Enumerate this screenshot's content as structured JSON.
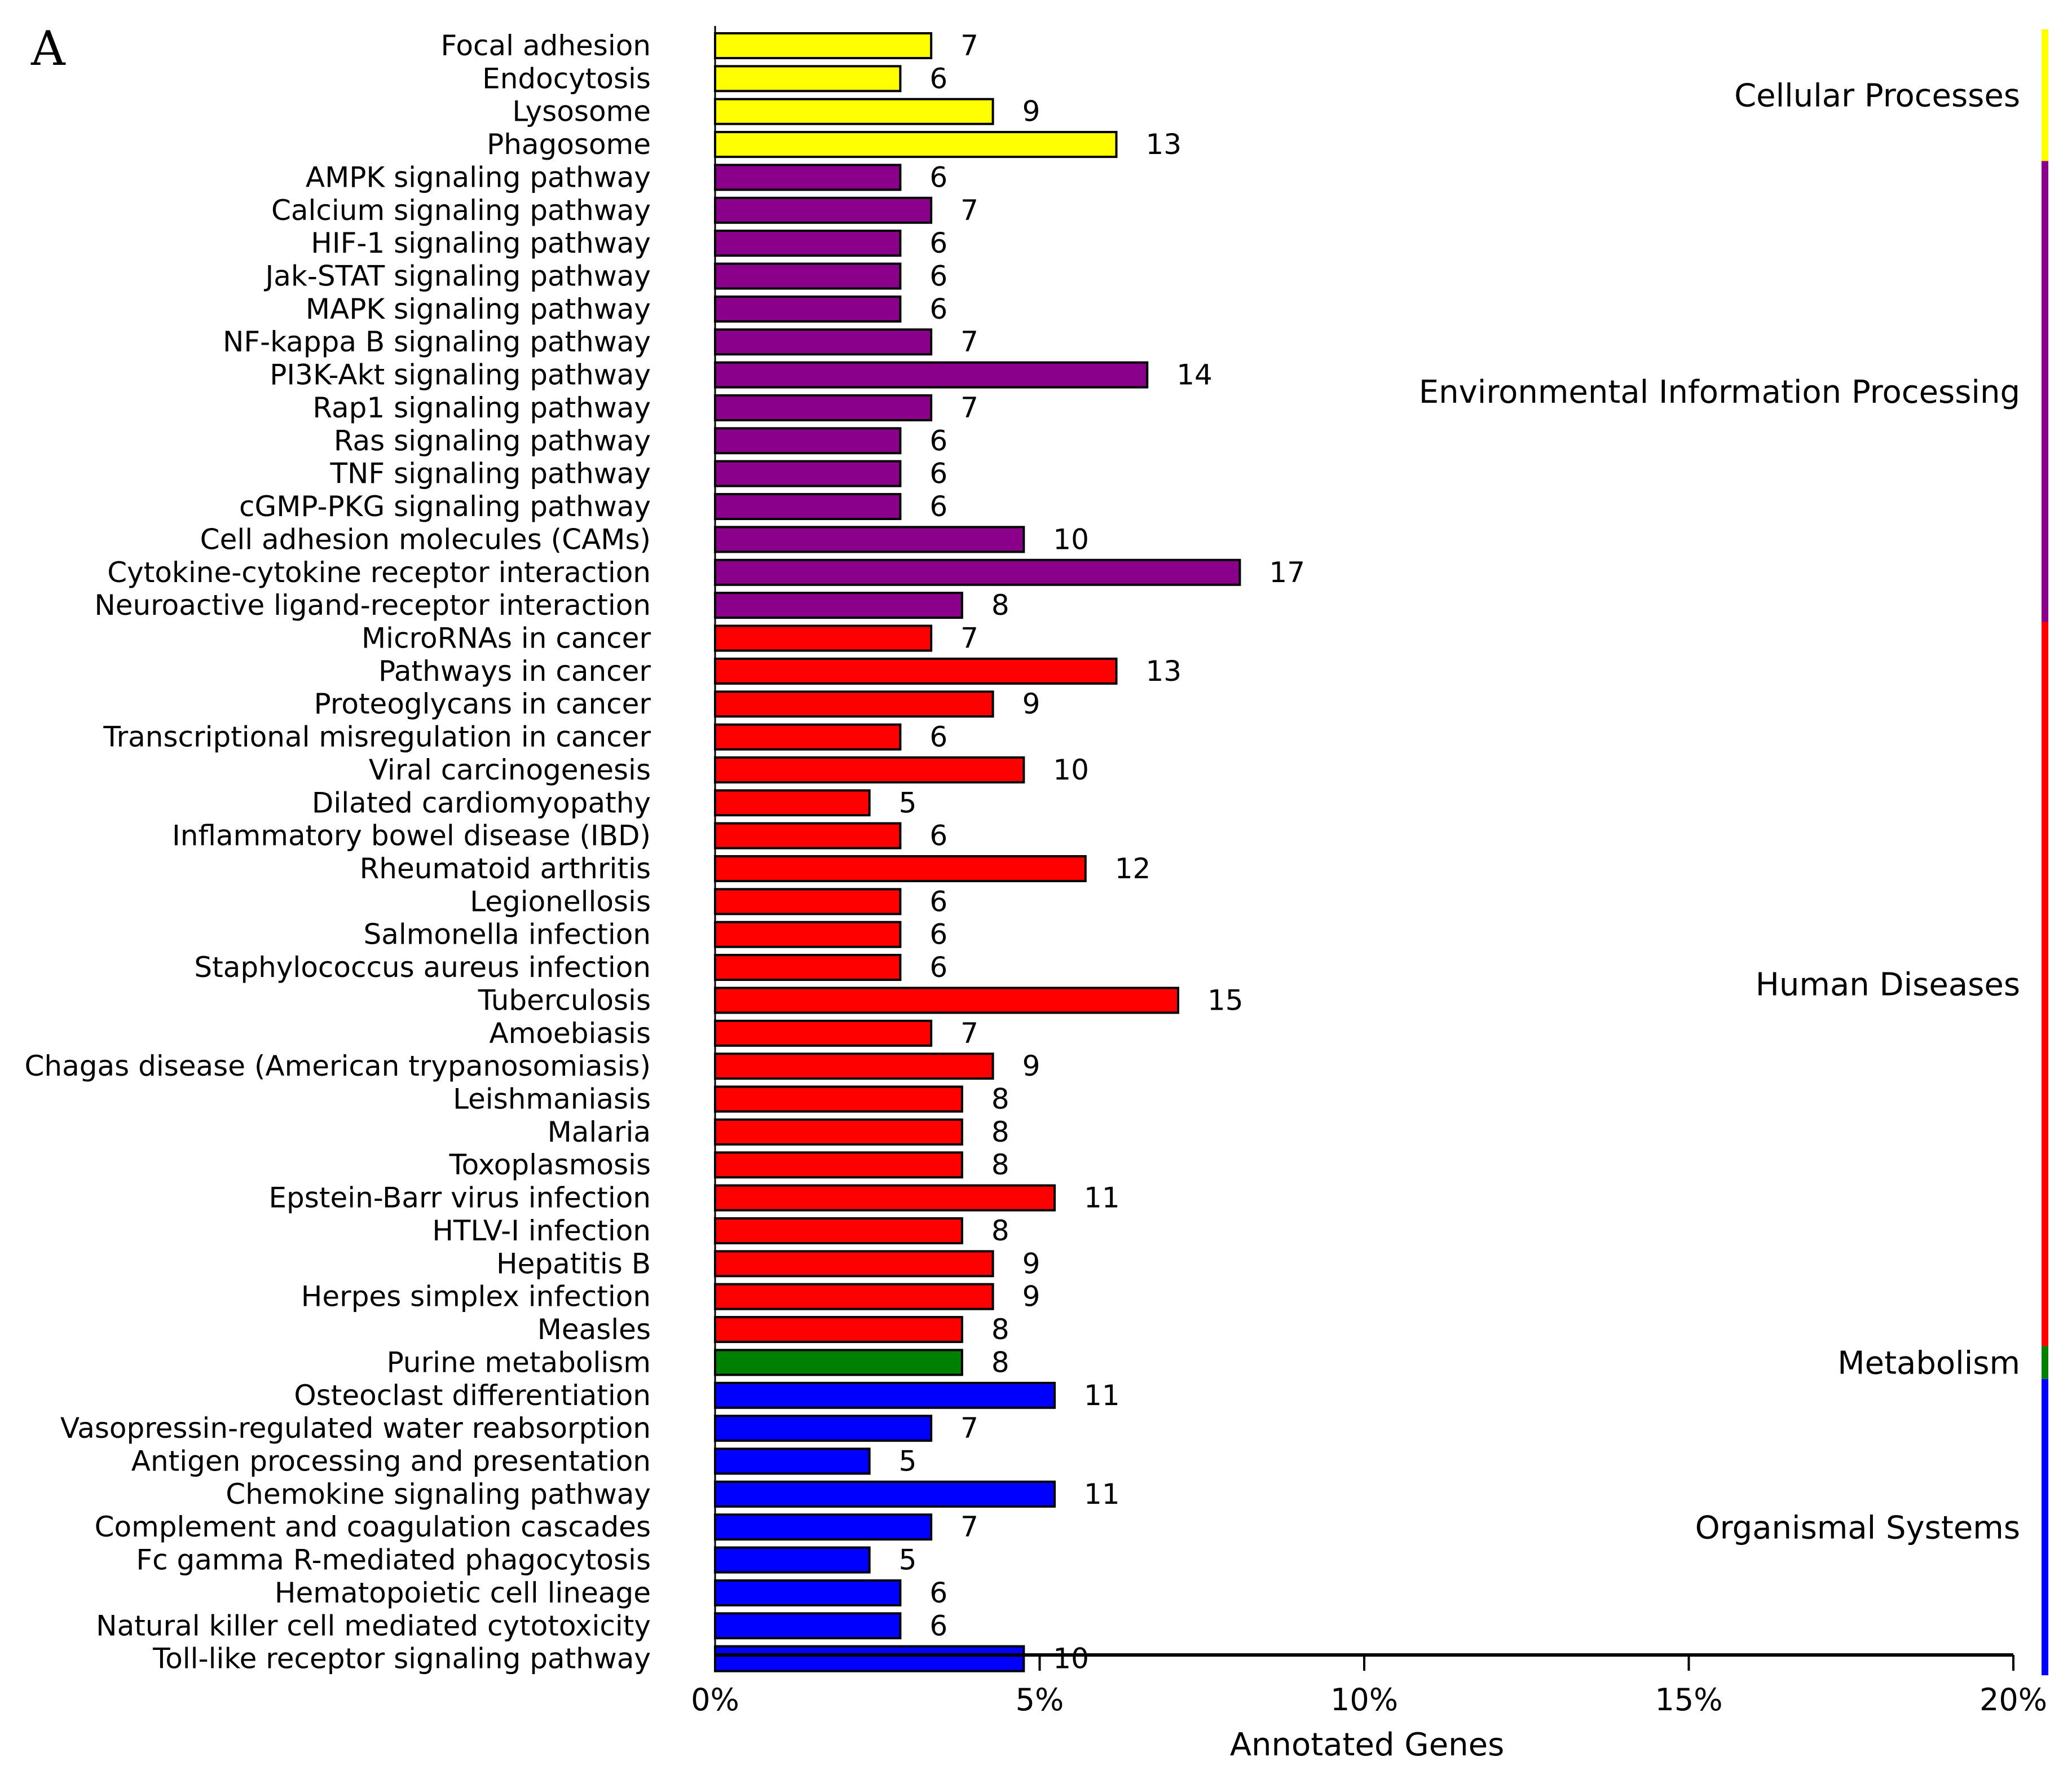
{
  "panel_label": "A",
  "chart_data": {
    "type": "bar",
    "orientation": "horizontal",
    "xlabel": "Annotated Genes",
    "xlim": [
      0,
      20
    ],
    "xticks": [
      0,
      5,
      10,
      15,
      20
    ],
    "xtick_labels": [
      "0%",
      "5%",
      "10%",
      "15%",
      "20%"
    ],
    "bar_percent_per_gene": 0.4755,
    "groups": [
      {
        "name": "Cellular Processes",
        "color": "#ffff00",
        "items": [
          {
            "label": "Focal adhesion",
            "value": 7
          },
          {
            "label": "Endocytosis",
            "value": 6
          },
          {
            "label": "Lysosome",
            "value": 9
          },
          {
            "label": "Phagosome",
            "value": 13
          }
        ]
      },
      {
        "name": "Environmental Information Processing",
        "color": "#8b008b",
        "items": [
          {
            "label": "AMPK signaling pathway",
            "value": 6
          },
          {
            "label": "Calcium signaling pathway",
            "value": 7
          },
          {
            "label": "HIF-1 signaling pathway",
            "value": 6
          },
          {
            "label": "Jak-STAT signaling pathway",
            "value": 6
          },
          {
            "label": "MAPK signaling pathway",
            "value": 6
          },
          {
            "label": "NF-kappa B signaling pathway",
            "value": 7
          },
          {
            "label": "PI3K-Akt signaling pathway",
            "value": 14
          },
          {
            "label": "Rap1 signaling pathway",
            "value": 7
          },
          {
            "label": "Ras signaling pathway",
            "value": 6
          },
          {
            "label": "TNF signaling pathway",
            "value": 6
          },
          {
            "label": "cGMP-PKG signaling pathway",
            "value": 6
          },
          {
            "label": "Cell adhesion molecules (CAMs)",
            "value": 10
          },
          {
            "label": "Cytokine-cytokine receptor interaction",
            "value": 17
          },
          {
            "label": "Neuroactive ligand-receptor interaction",
            "value": 8
          }
        ]
      },
      {
        "name": "Human Diseases",
        "color": "#ff0000",
        "items": [
          {
            "label": "MicroRNAs in cancer",
            "value": 7
          },
          {
            "label": "Pathways in cancer",
            "value": 13
          },
          {
            "label": "Proteoglycans in cancer",
            "value": 9
          },
          {
            "label": "Transcriptional misregulation in cancer",
            "value": 6
          },
          {
            "label": "Viral carcinogenesis",
            "value": 10
          },
          {
            "label": "Dilated cardiomyopathy",
            "value": 5
          },
          {
            "label": "Inflammatory bowel disease (IBD)",
            "value": 6
          },
          {
            "label": "Rheumatoid arthritis",
            "value": 12
          },
          {
            "label": "Legionellosis",
            "value": 6
          },
          {
            "label": "Salmonella infection",
            "value": 6
          },
          {
            "label": "Staphylococcus aureus infection",
            "value": 6
          },
          {
            "label": "Tuberculosis",
            "value": 15
          },
          {
            "label": "Amoebiasis",
            "value": 7
          },
          {
            "label": "Chagas disease (American trypanosomiasis)",
            "value": 9
          },
          {
            "label": "Leishmaniasis",
            "value": 8
          },
          {
            "label": "Malaria",
            "value": 8
          },
          {
            "label": "Toxoplasmosis",
            "value": 8
          },
          {
            "label": "Epstein-Barr virus infection",
            "value": 11
          },
          {
            "label": "HTLV-I infection",
            "value": 8
          },
          {
            "label": "Hepatitis B",
            "value": 9
          },
          {
            "label": "Herpes simplex infection",
            "value": 9
          },
          {
            "label": "Measles",
            "value": 8
          }
        ]
      },
      {
        "name": "Metabolism",
        "color": "#008000",
        "items": [
          {
            "label": "Purine metabolism",
            "value": 8
          }
        ]
      },
      {
        "name": "Organismal Systems",
        "color": "#0000ff",
        "items": [
          {
            "label": "Osteoclast differentiation",
            "value": 11
          },
          {
            "label": "Vasopressin-regulated water reabsorption",
            "value": 7
          },
          {
            "label": "Antigen processing and presentation",
            "value": 5
          },
          {
            "label": "Chemokine signaling pathway",
            "value": 11
          },
          {
            "label": "Complement and coagulation cascades",
            "value": 7
          },
          {
            "label": "Fc gamma R-mediated phagocytosis",
            "value": 5
          },
          {
            "label": "Hematopoietic cell lineage",
            "value": 6
          },
          {
            "label": "Natural killer cell mediated cytotoxicity",
            "value": 6
          },
          {
            "label": "Toll-like receptor signaling pathway",
            "value": 10
          }
        ]
      }
    ]
  }
}
